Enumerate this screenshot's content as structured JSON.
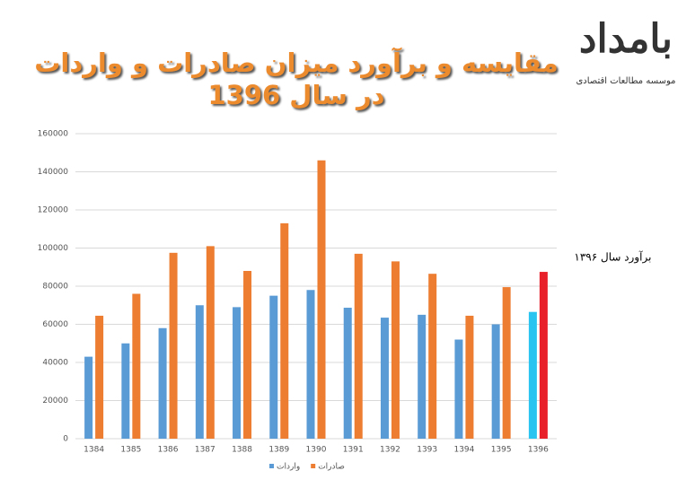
{
  "chart_data": {
    "type": "bar",
    "title": "مقایسه و برآورد میزان صادرات و واردات در سال 1396",
    "categories": [
      "1384",
      "1385",
      "1386",
      "1387",
      "1388",
      "1389",
      "1390",
      "1391",
      "1392",
      "1393",
      "1394",
      "1395",
      "1396"
    ],
    "series": [
      {
        "name": "واردات",
        "color": "#5b9bd5",
        "estimate_color": "#29c5f0",
        "values": [
          43000,
          50000,
          58000,
          70000,
          69000,
          75000,
          78000,
          68700,
          63500,
          65000,
          52000,
          60000,
          66500
        ]
      },
      {
        "name": "صادرات",
        "color": "#ed7d31",
        "estimate_color": "#e8202a",
        "values": [
          64500,
          76000,
          97500,
          101000,
          88000,
          113000,
          146000,
          97000,
          93000,
          86500,
          64500,
          79500,
          87500
        ]
      }
    ],
    "annotation": {
      "text": "برآورد سال ۱۳۹۶",
      "x": "1396"
    },
    "ylim": [
      0,
      160000
    ],
    "yticks": [
      0,
      20000,
      40000,
      60000,
      80000,
      100000,
      120000,
      140000,
      160000
    ],
    "grid": true,
    "legend": "bottom"
  },
  "logo": {
    "name": "بامداد",
    "subtitle": "موسسه مطالعات اقتصادی"
  }
}
